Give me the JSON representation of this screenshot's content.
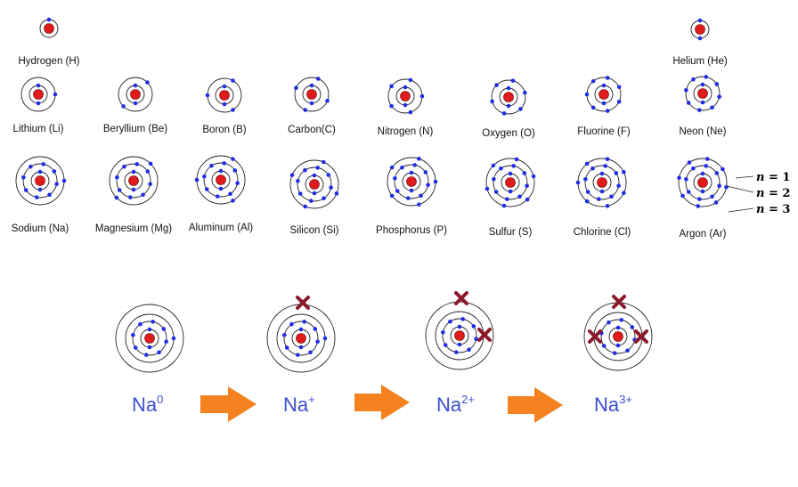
{
  "colors": {
    "nucleus": "#e01b1b",
    "electron": "#1f2ee6",
    "shell": "#222222",
    "arrow": "#f58220",
    "removed": "#8b1a2b",
    "ion_text": "#3b4fd1"
  },
  "elements": [
    {
      "label": "Hydrogen (H)",
      "shells": [
        1
      ]
    },
    {
      "label": "Helium (He)",
      "shells": [
        2
      ]
    },
    {
      "label": "Lithium (Li)",
      "shells": [
        2,
        1
      ]
    },
    {
      "label": "Beryllium (Be)",
      "shells": [
        2,
        2
      ]
    },
    {
      "label": "Boron (B)",
      "shells": [
        2,
        3
      ]
    },
    {
      "label": "Carbon(C)",
      "shells": [
        2,
        4
      ]
    },
    {
      "label": "Nitrogen (N)",
      "shells": [
        2,
        5
      ]
    },
    {
      "label": "Oxygen (O)",
      "shells": [
        2,
        6
      ]
    },
    {
      "label": "Fluorine (F)",
      "shells": [
        2,
        7
      ]
    },
    {
      "label": "Neon (Ne)",
      "shells": [
        2,
        8
      ]
    },
    {
      "label": "Sodium (Na)",
      "shells": [
        2,
        8,
        1
      ]
    },
    {
      "label": "Magnesium (Mg)",
      "shells": [
        2,
        8,
        2
      ]
    },
    {
      "label": "Aluminum (Al)",
      "shells": [
        2,
        8,
        3
      ]
    },
    {
      "label": "Silicon (Si)",
      "shells": [
        2,
        8,
        4
      ]
    },
    {
      "label": "Phosphorus (P)",
      "shells": [
        2,
        8,
        5
      ]
    },
    {
      "label": "Sulfur (S)",
      "shells": [
        2,
        8,
        6
      ]
    },
    {
      "label": "Chlorine (Cl)",
      "shells": [
        2,
        8,
        7
      ]
    },
    {
      "label": "Argon (Ar)",
      "shells": [
        2,
        8,
        8
      ]
    }
  ],
  "shell_labels": [
    {
      "symbol": "n",
      "equals": " = ",
      "value": "1"
    },
    {
      "symbol": "n",
      "equals": " = ",
      "value": "2"
    },
    {
      "symbol": "n",
      "equals": " = ",
      "value": "3"
    }
  ],
  "ions": [
    {
      "base": "Na",
      "charge": "0",
      "removed_electrons": 0
    },
    {
      "base": "Na",
      "charge": "+",
      "removed_electrons": 1
    },
    {
      "base": "Na",
      "charge": "2+",
      "removed_electrons": 2
    },
    {
      "base": "Na",
      "charge": "3+",
      "removed_electrons": 3
    }
  ],
  "arrow_icon": "right-arrow-icon",
  "removed_icon": "x-mark-icon"
}
